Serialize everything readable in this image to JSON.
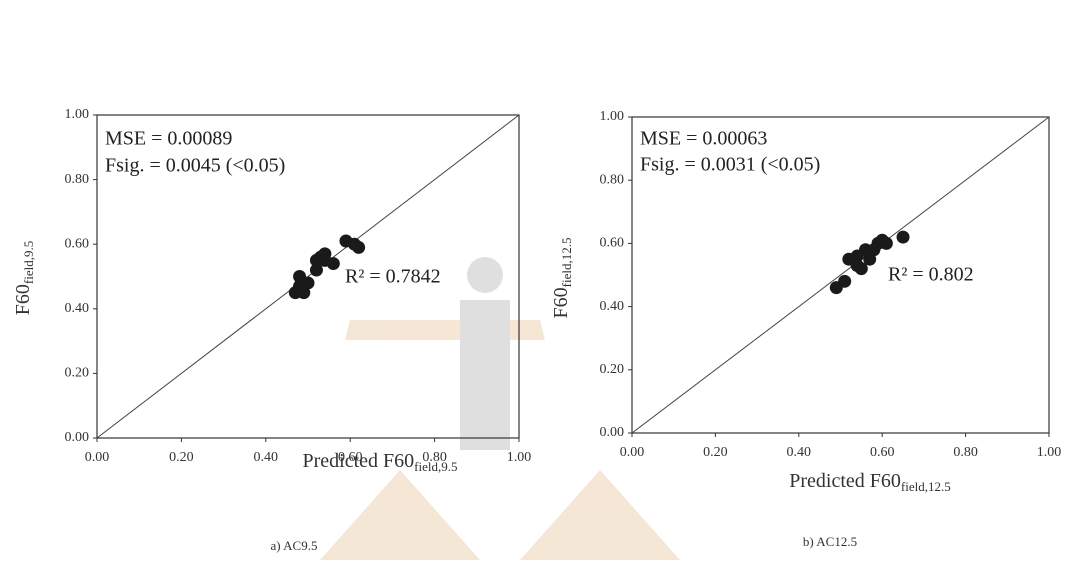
{
  "chart_data": [
    {
      "type": "scatter",
      "x_label": {
        "text": "Predicted F60",
        "subscript": "field,9.5"
      },
      "y_label": {
        "text": "F60",
        "subscript": "field,9.5"
      },
      "annotations": [
        "MSE = 0.00089",
        "Fsig. = 0.0045 (<0.05)",
        "R² = 0.7842"
      ],
      "caption": "a) AC9.5",
      "x": [
        0.47,
        0.48,
        0.48,
        0.49,
        0.5,
        0.52,
        0.52,
        0.53,
        0.54,
        0.54,
        0.56,
        0.59,
        0.61,
        0.62
      ],
      "values": [
        0.45,
        0.5,
        0.47,
        0.45,
        0.48,
        0.52,
        0.55,
        0.56,
        0.57,
        0.55,
        0.54,
        0.61,
        0.6,
        0.59
      ],
      "color": "#1a1a1a",
      "xlim": [
        0,
        1
      ],
      "ylim": [
        0,
        1
      ],
      "xticks": [
        {
          "value": 0,
          "label": "0.00"
        },
        {
          "value": 0.2,
          "label": "0.20"
        },
        {
          "value": 0.4,
          "label": "0.40"
        },
        {
          "value": 0.6,
          "label": "0.60"
        },
        {
          "value": 0.8,
          "label": "0.80"
        },
        {
          "value": 1,
          "label": "1.00"
        }
      ],
      "yticks": [
        {
          "value": 0,
          "label": "0.00"
        },
        {
          "value": 0.2,
          "label": "0.20"
        },
        {
          "value": 0.4,
          "label": "0.40"
        },
        {
          "value": 0.6,
          "label": "0.60"
        },
        {
          "value": 0.8,
          "label": "0.80"
        },
        {
          "value": 1,
          "label": "1.00"
        }
      ]
    },
    {
      "type": "scatter",
      "x_label": {
        "text": "Predicted F60",
        "subscript": "field,12.5"
      },
      "y_label": {
        "text": "F60",
        "subscript": "field,12.5"
      },
      "annotations": [
        "MSE = 0.00063",
        "Fsig. = 0.0031 (<0.05)",
        "R² = 0.802"
      ],
      "caption": "b) AC12.5",
      "x": [
        0.49,
        0.51,
        0.52,
        0.53,
        0.54,
        0.54,
        0.55,
        0.56,
        0.57,
        0.57,
        0.58,
        0.59,
        0.6,
        0.61,
        0.65
      ],
      "values": [
        0.46,
        0.48,
        0.55,
        0.55,
        0.53,
        0.56,
        0.52,
        0.58,
        0.55,
        0.57,
        0.58,
        0.6,
        0.61,
        0.6,
        0.62
      ],
      "color": "#1a1a1a",
      "xlim": [
        0,
        1
      ],
      "ylim": [
        0,
        1
      ],
      "xticks": [
        {
          "value": 0,
          "label": "0.00"
        },
        {
          "value": 0.2,
          "label": "0.20"
        },
        {
          "value": 0.4,
          "label": "0.40"
        },
        {
          "value": 0.6,
          "label": "0.60"
        },
        {
          "value": 0.8,
          "label": "0.80"
        },
        {
          "value": 1,
          "label": "1.00"
        }
      ],
      "yticks": [
        {
          "value": 0,
          "label": "0.00"
        },
        {
          "value": 0.2,
          "label": "0.20"
        },
        {
          "value": 0.4,
          "label": "0.40"
        },
        {
          "value": 0.6,
          "label": "0.60"
        },
        {
          "value": 0.8,
          "label": "0.80"
        },
        {
          "value": 1,
          "label": "1.00"
        }
      ]
    }
  ]
}
